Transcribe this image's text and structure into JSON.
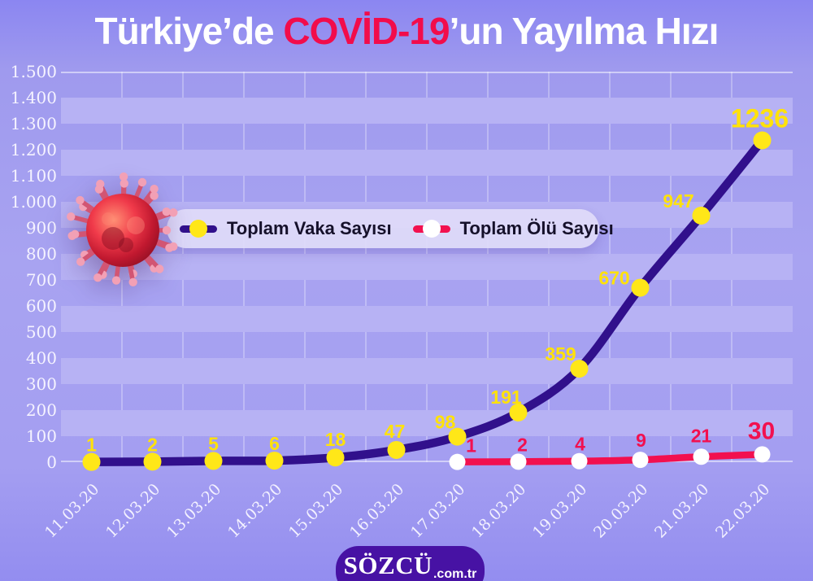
{
  "title": {
    "part1": "Türkiye’de ",
    "highlight": "COVİD-19",
    "part2": "’un Yayılma Hızı"
  },
  "legend": [
    {
      "label": "Toplam Vaka Sayısı",
      "line_color": "#31108c",
      "dot_color": "#ffe718",
      "label_color": "#ffe20a"
    },
    {
      "label": "Toplam Ölü Sayısı",
      "line_color": "#f2104f",
      "dot_color": "#ffffff",
      "label_color": "#f2104f"
    }
  ],
  "chart_data": {
    "type": "line",
    "title": "Türkiye’de COVİD-19’un Yayılma Hızı",
    "x": [
      "11.03.20",
      "12.03.20",
      "13.03.20",
      "14.03.20",
      "15.03.20",
      "16.03.20",
      "17.03.20",
      "18.03.20",
      "19.03.20",
      "20.03.20",
      "21.03.20",
      "22.03.20"
    ],
    "series": [
      {
        "name": "Toplam Vaka Sayısı",
        "color": "#31108c",
        "marker_color": "#ffe718",
        "label_color": "#ffe20a",
        "x_start_index": 0,
        "values": [
          1,
          2,
          5,
          6,
          18,
          47,
          98,
          191,
          359,
          670,
          947,
          1236
        ]
      },
      {
        "name": "Toplam Ölü Sayısı",
        "color": "#f2104f",
        "marker_color": "#ffffff",
        "label_color": "#f2104f",
        "x_start_index": 6,
        "values": [
          1,
          2,
          4,
          9,
          21,
          30
        ]
      }
    ],
    "y_ticks": [
      "1.500",
      "1.400",
      "1.300",
      "1.200",
      "1.100",
      "1.000",
      "900",
      "800",
      "700",
      "600",
      "500",
      "400",
      "300",
      "200",
      "100",
      "0"
    ],
    "ylim": [
      0,
      1500
    ],
    "grid": "alternating horizontal bands every 100 units + vertical column separators",
    "legend_position": "upper-left-inside"
  },
  "footer": {
    "brand": "SÖZCÜ",
    "brand_suffix": ".com.tr"
  },
  "icons": {
    "virus": "coronavirus-illustration"
  },
  "colors": {
    "background": "#a49ef1",
    "band_light": "#b7b2f4",
    "title_text": "#ffffff",
    "title_highlight": "#f20c4b",
    "axis_text": "#f3f1ff",
    "legend_bg": "#dfdbf9",
    "logo_bg": "#4712a4"
  }
}
